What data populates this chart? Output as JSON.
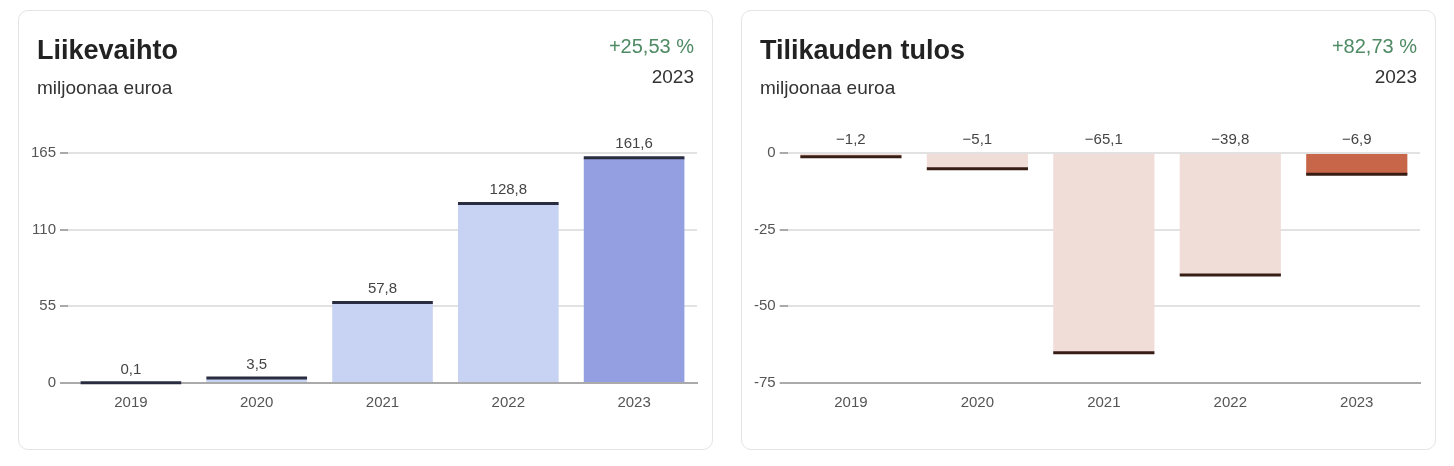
{
  "chart_data": [
    {
      "type": "bar",
      "title": "Liikevaihto",
      "subtitle": "miljoonaa euroa",
      "annotations": [
        "+25,53 %",
        "2023"
      ],
      "categories": [
        "2019",
        "2020",
        "2021",
        "2022",
        "2023"
      ],
      "values": [
        0.1,
        3.5,
        57.8,
        128.8,
        161.6
      ],
      "colors": [
        "#c8d2f2",
        "#c8d2f2",
        "#c8d2f2",
        "#c8d2f2",
        "#949fe2"
      ],
      "value_labels": [
        "0,1",
        "3,5",
        "57,8",
        "128,8",
        "161,6"
      ],
      "ylim": [
        0,
        165
      ],
      "yticks": [
        0,
        55,
        110,
        165
      ],
      "grid": "y",
      "legend": false
    },
    {
      "type": "bar",
      "title": "Tilikauden tulos",
      "subtitle": "miljoonaa euroa",
      "annotations": [
        "+82,73 %",
        "2023"
      ],
      "categories": [
        "2019",
        "2020",
        "2021",
        "2022",
        "2023"
      ],
      "values": [
        -1.2,
        -5.1,
        -65.1,
        -39.8,
        -6.9
      ],
      "colors": [
        "#f1ddd8",
        "#f1ddd8",
        "#f1ddd8",
        "#f1ddd8",
        "#c8664a"
      ],
      "value_labels": [
        "−1,2",
        "−5,1",
        "−65,1",
        "−39,8",
        "−6,9"
      ],
      "ylim": [
        -75,
        0
      ],
      "yticks": [
        0,
        -25,
        -50,
        -75
      ],
      "grid": "y",
      "legend": false
    }
  ]
}
